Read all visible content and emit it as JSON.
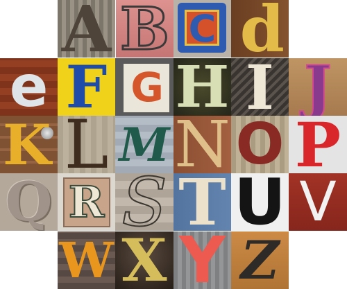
{
  "collage": {
    "tiles": [
      {
        "letter": "A",
        "bg": "#8a8478",
        "fg": "#5a4f45",
        "bg2": "#b0a898"
      },
      {
        "letter": "B",
        "bg": "#d98a8a",
        "fg": "#3a3a3a",
        "bg2": "#c77a78"
      },
      {
        "letter": "C",
        "bg": "#c84a2a",
        "fg": "#e8c23a",
        "bg2": "#3a5aa8"
      },
      {
        "letter": "d",
        "bg": "#7a4a2a",
        "fg": "#e0b844",
        "bg2": "#5a3520"
      },
      {
        "letter": "e",
        "bg": "#8a3a1e",
        "fg": "#dde2e6",
        "bg2": "#6a2c16"
      },
      {
        "letter": "F",
        "bg": "#f2d419",
        "fg": "#1f4ca8",
        "bg2": "#e8c410"
      },
      {
        "letter": "G",
        "bg": "#e9e4d8",
        "fg": "#d5562a",
        "bg2": "#5c5c5c"
      },
      {
        "letter": "H",
        "bg": "#4a4a2e",
        "fg": "#d8dfb4",
        "bg2": "#2e2e1c"
      },
      {
        "letter": "I",
        "bg": "#4a4440",
        "fg": "#efe7d6",
        "bg2": "#2a2624"
      },
      {
        "letter": "J",
        "bg": "#b78a5a",
        "fg": "#8a3a8c",
        "bg2": "#a07248"
      },
      {
        "letter": "K",
        "bg": "#8a5a38",
        "fg": "#e8b02a",
        "bg2": "#6a4228"
      },
      {
        "letter": "L",
        "bg": "#b6ab97",
        "fg": "#3e2c1e",
        "bg2": "#9e937f"
      },
      {
        "letter": "M",
        "bg": "#a8b0bc",
        "fg": "#1f5a4a",
        "bg2": "#8c96a4"
      },
      {
        "letter": "N",
        "bg": "#9a5a3a",
        "fg": "#e0c08a",
        "bg2": "#7a4228"
      },
      {
        "letter": "O",
        "bg": "#b6a88c",
        "fg": "#8a2a24",
        "bg2": "#9e8e74"
      },
      {
        "letter": "P",
        "bg": "#e0e0e0",
        "fg": "#d9262a",
        "bg2": "#c8c8c8"
      },
      {
        "letter": "Q",
        "bg": "#b3a89a",
        "fg": "#8a7e70",
        "bg2": "#9a8e80"
      },
      {
        "letter": "R",
        "bg": "#c8a58a",
        "fg": "#3a4a3a",
        "bg2": "#a8856c"
      },
      {
        "letter": "S",
        "bg": "#b8aea2",
        "fg": "#3a3630",
        "bg2": "#a0968a"
      },
      {
        "letter": "T",
        "bg": "#5a7aa6",
        "fg": "#ece2cc",
        "bg2": "#4a6890"
      },
      {
        "letter": "U",
        "bg": "#efefef",
        "fg": "#141414",
        "bg2": "#d8d8d8"
      },
      {
        "letter": "V",
        "bg": "#9a2e22",
        "fg": "#f2f2f2",
        "bg2": "#7a2218"
      },
      {
        "letter": "W",
        "bg": "#5e5048",
        "fg": "#e8961e",
        "bg2": "#463a34"
      },
      {
        "letter": "X",
        "bg": "#4a3a30",
        "fg": "#d6bd5c",
        "bg2": "#2e241e"
      },
      {
        "letter": "Y",
        "bg": "#8a8c8e",
        "fg": "#ec5a50",
        "bg2": "#6e7072"
      },
      {
        "letter": "Z",
        "bg": "#c4823e",
        "fg": "#2e2a28",
        "bg2": "#a86a2e"
      }
    ]
  }
}
